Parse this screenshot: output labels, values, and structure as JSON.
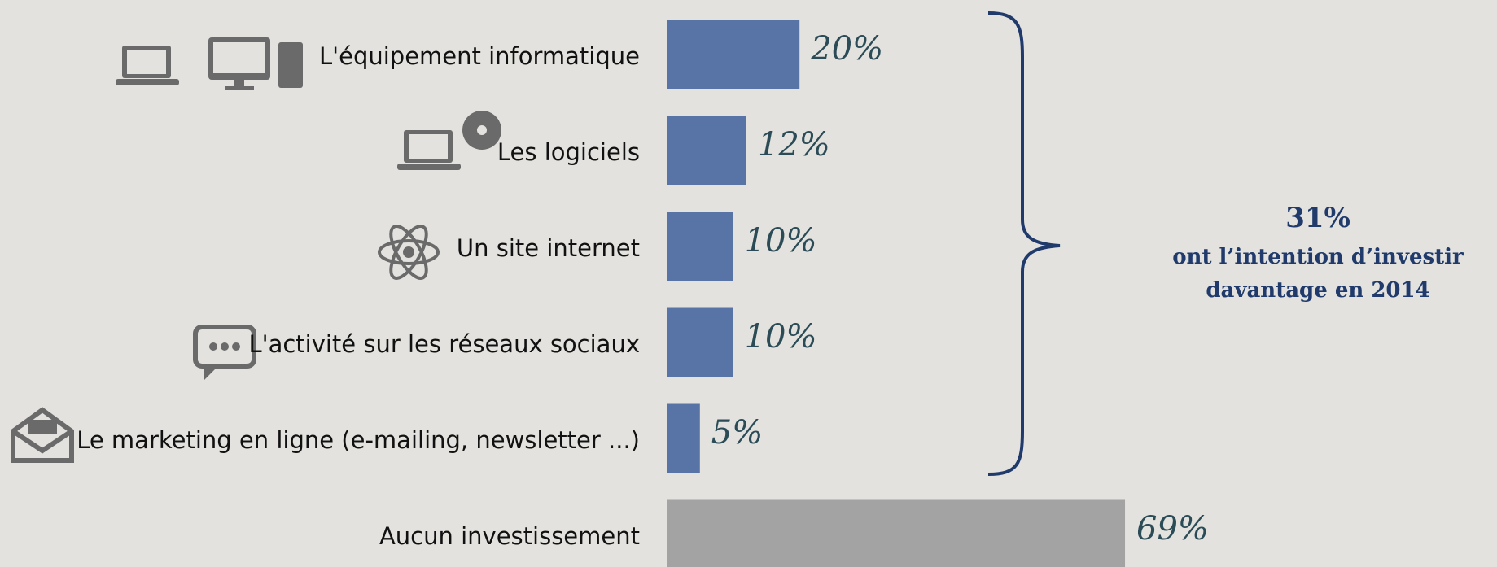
{
  "chart_data": {
    "type": "bar",
    "orientation": "horizontal",
    "categories": [
      "L'équipement informatique",
      "Les logiciels",
      "Un site internet",
      "L'activité sur les réseaux sociaux",
      "Le marketing en ligne (e-mailing, newsletter ...)",
      "Aucun investissement"
    ],
    "values": [
      20,
      12,
      10,
      10,
      5,
      69
    ],
    "value_labels": [
      "20%",
      "12%",
      "10%",
      "10%",
      "5%",
      "69%"
    ],
    "colors": [
      "#5874a6",
      "#5874a6",
      "#5874a6",
      "#5874a6",
      "#5874a6",
      "#a3a3a3"
    ],
    "annotation": {
      "value": 31,
      "label": "31%",
      "text_lines": [
        "ont l’intention d’investir",
        "davantage en 2014"
      ]
    }
  }
}
